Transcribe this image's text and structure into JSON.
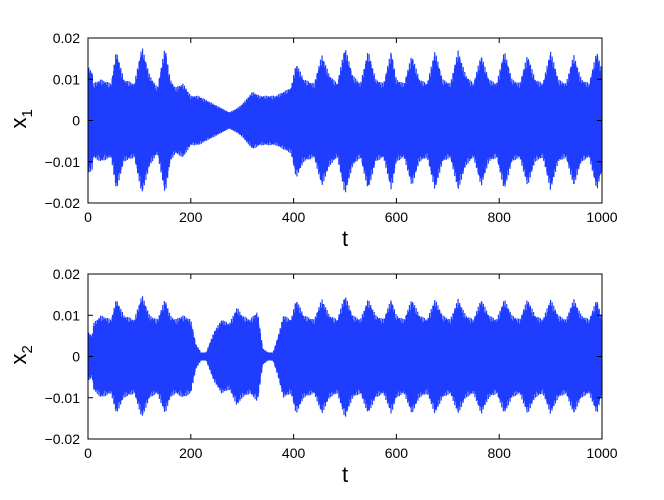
{
  "chart_data": [
    {
      "type": "line",
      "xlabel": "t",
      "ylabel": "x",
      "ylabel_subscript": "1",
      "xlim": [
        0,
        1000
      ],
      "ylim": [
        -0.02,
        0.02
      ],
      "x_ticks": [
        0,
        200,
        400,
        600,
        800,
        1000
      ],
      "x_tick_labels": [
        "0",
        "200",
        "400",
        "600",
        "800",
        "1000"
      ],
      "y_ticks": [
        -0.02,
        -0.01,
        0,
        0.01,
        0.02
      ],
      "y_tick_labels": [
        "−0.02",
        "−0.01",
        "0",
        "0.01",
        "0.02"
      ],
      "grid": false,
      "color": "#1f3dff",
      "series": [
        {
          "envelope": {
            "x": [
              0,
              8,
              10,
              25,
              45,
              55,
              70,
              90,
              105,
              120,
              135,
              150,
              160,
              170,
              185,
              200,
              215,
              230,
              245,
              260,
              275,
              290,
              300,
              320,
              335,
              350,
              365,
              380,
              395,
              405,
              420,
              440,
              455,
              470,
              485,
              500,
              515,
              530,
              545,
              560,
              575,
              590,
              600,
              615,
              630,
              645,
              660,
              675,
              690,
              705,
              720,
              735,
              750,
              765,
              780,
              795,
              810,
              825,
              840,
              855,
              870,
              885,
              900,
              915,
              930,
              945,
              960,
              975,
              990,
              1000
            ],
            "upper": [
              0.013,
              0.012,
              0.009,
              0.01,
              0.009,
              0.017,
              0.01,
              0.009,
              0.018,
              0.011,
              0.008,
              0.018,
              0.01,
              0.008,
              0.009,
              0.006,
              0.006,
              0.005,
              0.004,
              0.003,
              0.002,
              0.003,
              0.004,
              0.007,
              0.006,
              0.006,
              0.006,
              0.007,
              0.008,
              0.014,
              0.01,
              0.009,
              0.016,
              0.011,
              0.009,
              0.018,
              0.011,
              0.009,
              0.017,
              0.01,
              0.009,
              0.017,
              0.01,
              0.009,
              0.016,
              0.01,
              0.009,
              0.017,
              0.01,
              0.009,
              0.017,
              0.011,
              0.009,
              0.016,
              0.01,
              0.009,
              0.017,
              0.01,
              0.009,
              0.016,
              0.01,
              0.009,
              0.017,
              0.01,
              0.009,
              0.016,
              0.01,
              0.009,
              0.017,
              0.012
            ]
          }
        }
      ]
    },
    {
      "type": "line",
      "xlabel": "t",
      "ylabel": "x",
      "ylabel_subscript": "2",
      "xlim": [
        0,
        1000
      ],
      "ylim": [
        -0.02,
        0.02
      ],
      "x_ticks": [
        0,
        200,
        400,
        600,
        800,
        1000
      ],
      "x_tick_labels": [
        "0",
        "200",
        "400",
        "600",
        "800",
        "1000"
      ],
      "y_ticks": [
        -0.02,
        -0.01,
        0,
        0.01,
        0.02
      ],
      "y_tick_labels": [
        "−0.02",
        "−0.01",
        "0",
        "0.01",
        "0.02"
      ],
      "grid": false,
      "color": "#1f3dff",
      "series": [
        {
          "envelope": {
            "x": [
              0,
              8,
              10,
              25,
              45,
              55,
              70,
              90,
              105,
              120,
              135,
              150,
              160,
              170,
              185,
              200,
              210,
              220,
              230,
              245,
              260,
              275,
              290,
              300,
              315,
              330,
              340,
              350,
              360,
              370,
              380,
              395,
              405,
              420,
              440,
              455,
              470,
              485,
              500,
              515,
              530,
              545,
              560,
              575,
              590,
              600,
              615,
              630,
              645,
              660,
              675,
              690,
              705,
              720,
              735,
              750,
              765,
              780,
              795,
              810,
              825,
              840,
              855,
              870,
              885,
              900,
              915,
              930,
              945,
              960,
              975,
              990,
              1000
            ],
            "upper": [
              0.006,
              0.005,
              0.008,
              0.01,
              0.009,
              0.014,
              0.01,
              0.009,
              0.015,
              0.01,
              0.009,
              0.014,
              0.01,
              0.009,
              0.01,
              0.009,
              0.003,
              0.001,
              0.001,
              0.006,
              0.009,
              0.008,
              0.012,
              0.01,
              0.009,
              0.011,
              0.002,
              0.001,
              0.001,
              0.005,
              0.01,
              0.009,
              0.014,
              0.01,
              0.009,
              0.014,
              0.01,
              0.009,
              0.015,
              0.01,
              0.009,
              0.014,
              0.01,
              0.009,
              0.014,
              0.01,
              0.009,
              0.014,
              0.01,
              0.009,
              0.014,
              0.01,
              0.009,
              0.014,
              0.01,
              0.009,
              0.014,
              0.01,
              0.009,
              0.014,
              0.01,
              0.009,
              0.014,
              0.01,
              0.009,
              0.014,
              0.01,
              0.009,
              0.014,
              0.01,
              0.009,
              0.014,
              0.009
            ]
          }
        }
      ]
    }
  ]
}
